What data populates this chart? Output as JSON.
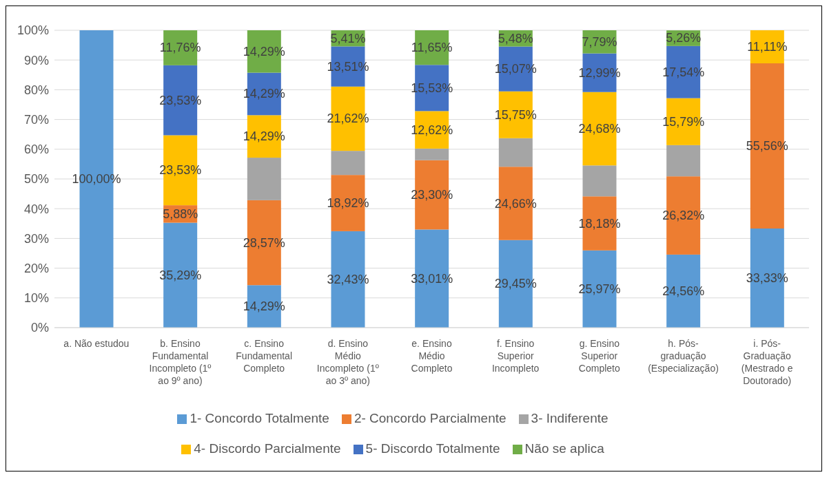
{
  "chart_data": {
    "type": "bar",
    "stacked": true,
    "categories": [
      "a. Não estudou",
      "b. Ensino\nFundamental\nIncompleto (1º\nao 9º ano)",
      "c. Ensino\nFundamental\nCompleto",
      "d. Ensino\nMédio\nIncompleto (1º\nao 3º ano)",
      "e. Ensino\nMédio\nCompleto",
      "f. Ensino\nSuperior\nIncompleto",
      "g. Ensino\nSuperior\nCompleto",
      "h. Pós-\ngraduação\n(Especialização)",
      "i. Pós-\nGraduação\n(Mestrado e\nDoutorado)"
    ],
    "series": [
      {
        "name": "1- Concordo Totalmente",
        "color": "#5b9bd5",
        "values": [
          100,
          35.29,
          14.29,
          32.43,
          33.01,
          29.45,
          25.97,
          24.56,
          33.33
        ],
        "value_labels": [
          "100,00%",
          "35,29%",
          "14,29%",
          "32,43%",
          "33,01%",
          "29,45%",
          "25,97%",
          "24,56%",
          "33,33%"
        ]
      },
      {
        "name": "2- Concordo Parcialmente",
        "color": "#ed7d31",
        "values": [
          0,
          5.88,
          28.57,
          18.92,
          23.3,
          24.66,
          18.18,
          26.32,
          55.56
        ],
        "value_labels": [
          null,
          "5,88%",
          "28,57%",
          "18,92%",
          "23,30%",
          "24,66%",
          "18,18%",
          "26,32%",
          "55,56%"
        ]
      },
      {
        "name": "3- Indiferente",
        "color": "#a5a5a5",
        "values": [
          0,
          0,
          14.3,
          8.1,
          3.9,
          9.6,
          10.4,
          10.5,
          0
        ],
        "value_labels": [
          null,
          null,
          null,
          null,
          null,
          null,
          null,
          null,
          null
        ]
      },
      {
        "name": "4- Discordo Parcialmente",
        "color": "#ffc000",
        "values": [
          0,
          23.53,
          14.29,
          21.62,
          12.62,
          15.75,
          24.68,
          15.79,
          11.11
        ],
        "value_labels": [
          null,
          "23,53%",
          "14,29%",
          "21,62%",
          "12,62%",
          "15,75%",
          "24,68%",
          "15,79%",
          "11,11%"
        ]
      },
      {
        "name": "5- Discordo Totalmente",
        "color": "#4472c4",
        "values": [
          0,
          23.53,
          14.29,
          13.51,
          15.53,
          15.07,
          12.99,
          17.54,
          0
        ],
        "value_labels": [
          null,
          "23,53%",
          "14,29%",
          "13,51%",
          "15,53%",
          "15,07%",
          "12,99%",
          "17,54%",
          null
        ]
      },
      {
        "name": "Não se aplica",
        "color": "#70ad47",
        "values": [
          0,
          11.76,
          14.29,
          5.41,
          11.65,
          5.48,
          7.79,
          5.26,
          0
        ],
        "value_labels": [
          null,
          "11,76%",
          "14,29%",
          "5,41%",
          "11,65%",
          "5,48%",
          "7,79%",
          "5,26%",
          null
        ]
      }
    ],
    "ylim": [
      0,
      100
    ],
    "yticks": [
      {
        "value": 0,
        "label": "0%"
      },
      {
        "value": 10,
        "label": "10%"
      },
      {
        "value": 20,
        "label": "20%"
      },
      {
        "value": 30,
        "label": "30%"
      },
      {
        "value": 40,
        "label": "40%"
      },
      {
        "value": 50,
        "label": "50%"
      },
      {
        "value": 60,
        "label": "60%"
      },
      {
        "value": 70,
        "label": "70%"
      },
      {
        "value": 80,
        "label": "80%"
      },
      {
        "value": 90,
        "label": "90%"
      },
      {
        "value": 100,
        "label": "100%"
      }
    ],
    "grid": "y",
    "legend": "bottom"
  }
}
